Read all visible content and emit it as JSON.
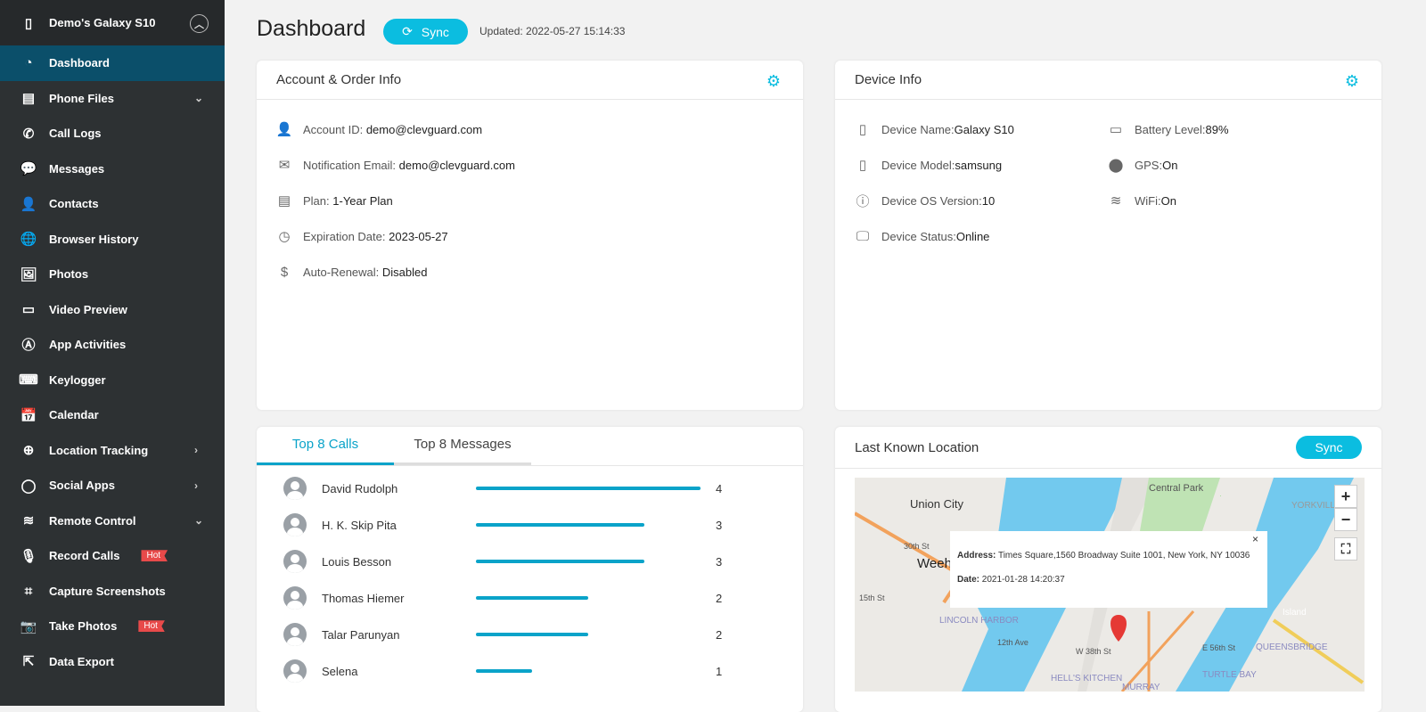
{
  "sidebar": {
    "device": "Demo's Galaxy S10",
    "items": [
      {
        "label": "Dashboard",
        "icon": "gauge-icon",
        "glyph": "◔",
        "active": true
      },
      {
        "label": "Phone Files",
        "icon": "clipboard-icon",
        "glyph": "▤",
        "chevron": "⌄"
      },
      {
        "label": "Call Logs",
        "icon": "phone-icon",
        "glyph": "✆"
      },
      {
        "label": "Messages",
        "icon": "chat-icon",
        "glyph": "💬"
      },
      {
        "label": "Contacts",
        "icon": "contact-icon",
        "glyph": "👤"
      },
      {
        "label": "Browser History",
        "icon": "globe-icon",
        "glyph": "🌐"
      },
      {
        "label": "Photos",
        "icon": "image-icon",
        "glyph": "🖼"
      },
      {
        "label": "Video Preview",
        "icon": "video-icon",
        "glyph": "▭"
      },
      {
        "label": "App Activities",
        "icon": "app-icon",
        "glyph": "Ⓐ"
      },
      {
        "label": "Keylogger",
        "icon": "keyboard-icon",
        "glyph": "⌨"
      },
      {
        "label": "Calendar",
        "icon": "calendar-icon",
        "glyph": "📅"
      },
      {
        "label": "Location Tracking",
        "icon": "target-icon",
        "glyph": "⊕",
        "chevron": "›"
      },
      {
        "label": "Social Apps",
        "icon": "bubble-icon",
        "glyph": "◯",
        "chevron": "›"
      },
      {
        "label": "Remote Control",
        "icon": "wifi-icon",
        "glyph": "≋",
        "chevron": "⌄"
      },
      {
        "label": "Record Calls",
        "icon": "mic-icon",
        "glyph": "🎙",
        "badge": "Hot"
      },
      {
        "label": "Capture Screenshots",
        "icon": "crop-icon",
        "glyph": "⌗"
      },
      {
        "label": "Take Photos",
        "icon": "camera-icon",
        "glyph": "📷",
        "badge": "Hot"
      },
      {
        "label": "Data Export",
        "icon": "export-icon",
        "glyph": "⇱"
      }
    ]
  },
  "header": {
    "title": "Dashboard",
    "sync": "Sync",
    "updated": "Updated: 2022-05-27 15:14:33"
  },
  "account": {
    "title": "Account & Order Info",
    "rows": [
      {
        "label": "Account ID: ",
        "value": "demo@clevguard.com",
        "icon": "account-icon",
        "glyph": "👤"
      },
      {
        "label": "Notification Email: ",
        "value": "demo@clevguard.com",
        "icon": "mail-icon",
        "glyph": "✉"
      },
      {
        "label": "Plan: ",
        "value": "1-Year Plan",
        "icon": "document-icon",
        "glyph": "▤"
      },
      {
        "label": "Expiration Date: ",
        "value": "2023-05-27",
        "icon": "clock-icon",
        "glyph": "◷"
      },
      {
        "label": "Auto-Renewal: ",
        "value": "Disabled",
        "icon": "dollar-icon",
        "glyph": "$"
      }
    ]
  },
  "device": {
    "title": "Device Info",
    "rows": [
      {
        "label": "Device Name:",
        "value": "Galaxy S10",
        "icon": "phone-icon",
        "glyph": "▯"
      },
      {
        "label": "Device Model: ",
        "value": "samsung",
        "icon": "phone-icon",
        "glyph": "▯"
      },
      {
        "label": "Device OS Version: ",
        "value": "10",
        "icon": "info-icon",
        "glyph": "ⓘ"
      },
      {
        "label": "Device Status:",
        "value": "Online",
        "icon": "monitor-icon",
        "glyph": "🖵"
      },
      {
        "label": "Battery Level: ",
        "value": "89%",
        "icon": "battery-icon",
        "glyph": "▭"
      },
      {
        "label": "GPS:",
        "value": "On",
        "icon": "location-pin-icon",
        "glyph": "⬤"
      },
      {
        "label": "WiFi:",
        "value": "On",
        "icon": "wifi-icon",
        "glyph": "≋"
      }
    ]
  },
  "top": {
    "tabs": [
      "Top 8 Calls",
      "Top 8 Messages"
    ],
    "max": 4,
    "calls": [
      {
        "name": "David Rudolph",
        "count": 4
      },
      {
        "name": "H. K. Skip Pita",
        "count": 3
      },
      {
        "name": "Louis Besson",
        "count": 3
      },
      {
        "name": "Thomas Hiemer",
        "count": 2
      },
      {
        "name": "Talar Parunyan",
        "count": 2
      },
      {
        "name": "Selena",
        "count": 1
      }
    ]
  },
  "location": {
    "title": "Last Known Location",
    "sync": "Sync",
    "address_label": "Address:",
    "address": " Times Square,1560 Broadway Suite 1001, New York, NY 10036",
    "date_label": "Date:",
    "date": " 2021-01-28 14:20:37",
    "close": "×",
    "zoom_in": "+",
    "zoom_out": "−",
    "fullscreen": "⛶",
    "labels": [
      "Union City",
      "Central Park",
      "YORKVILLE",
      "Weeh",
      "LINCOLN HARBOR",
      "HELL'S KITCHEN",
      "TURTLE BAY",
      "QUEENSBRIDGE",
      "MURRAY",
      "W 38th St",
      "E 56th St",
      "12th Ave",
      "30th St",
      "15th St",
      "Island"
    ]
  },
  "colors": {
    "accent": "#0bbde0",
    "sidebar": "#2d3133",
    "active": "#0b4f6a",
    "hot": "#e84a4a"
  }
}
